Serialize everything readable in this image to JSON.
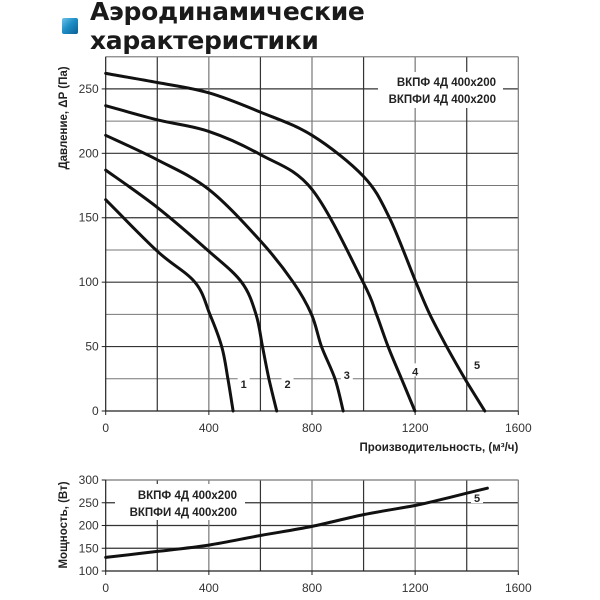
{
  "header": {
    "title": "Аэродинамические характеристики",
    "icon": "blue-square-bullet-icon",
    "icon_color": "#1e8fc6"
  },
  "chart_data": [
    {
      "id": "pressure",
      "type": "line",
      "title": "Аэродинамические характеристики",
      "xlabel": "Производительность, (м³/ч)",
      "ylabel": "Давление, ΔP (Па)",
      "xlim": [
        0,
        1600
      ],
      "ylim": [
        0,
        275
      ],
      "xticks": [
        0,
        400,
        800,
        1200,
        1600
      ],
      "yticks": [
        0,
        50,
        100,
        150,
        200,
        250
      ],
      "grid": true,
      "grid_x_step": 200,
      "grid_y_step": 25,
      "legend": [
        "ВКПФ 4Д 400x200",
        "ВКПФИ 4Д 400x200"
      ],
      "legend_position": "upper right",
      "series": [
        {
          "name": "1",
          "x": [
            0,
            200,
            346,
            404,
            450,
            474,
            494
          ],
          "y": [
            164,
            124,
            100,
            75,
            50,
            25,
            0
          ]
        },
        {
          "name": "2",
          "x": [
            0,
            200,
            400,
            527,
            583,
            608,
            633,
            663
          ],
          "y": [
            187,
            158,
            124,
            100,
            75,
            50,
            25,
            0
          ]
        },
        {
          "name": "3",
          "x": [
            0,
            200,
            400,
            600,
            727,
            798,
            837,
            889,
            921
          ],
          "y": [
            214,
            195,
            172,
            132,
            100,
            75,
            50,
            25,
            0
          ]
        },
        {
          "name": "4",
          "x": [
            0,
            200,
            400,
            600,
            800,
            998,
            1050,
            1095,
            1147,
            1199
          ],
          "y": [
            237,
            226,
            217,
            199,
            172,
            100,
            75,
            50,
            25,
            0
          ]
        },
        {
          "name": "5",
          "x": [
            0,
            200,
            400,
            600,
            800,
            1000,
            1100,
            1203,
            1257,
            1322,
            1393,
            1470
          ],
          "y": [
            262,
            255,
            247,
            232,
            214,
            182,
            150,
            100,
            75,
            50,
            25,
            0
          ]
        }
      ],
      "curve_labels": [
        {
          "text": "1",
          "x": 535,
          "y": 20
        },
        {
          "text": "2",
          "x": 705,
          "y": 20
        },
        {
          "text": "3",
          "x": 935,
          "y": 27
        },
        {
          "text": "4",
          "x": 1200,
          "y": 30
        },
        {
          "text": "5",
          "x": 1440,
          "y": 35
        }
      ]
    },
    {
      "id": "power",
      "type": "line",
      "xlabel": "",
      "ylabel": "Мощность, (Вт)",
      "xlim": [
        0,
        1600
      ],
      "ylim": [
        100,
        300
      ],
      "xticks": [
        0,
        400,
        800,
        1200,
        1600
      ],
      "yticks": [
        100,
        150,
        200,
        250,
        300
      ],
      "grid": true,
      "grid_x_step": 200,
      "grid_y_step": 50,
      "legend": [
        "ВКПФ 4Д 400x200",
        "ВКПФИ 4Д 400x200"
      ],
      "legend_position": "upper left",
      "series": [
        {
          "name": "5",
          "x": [
            0,
            200,
            400,
            600,
            800,
            1000,
            1200,
            1300,
            1400,
            1480
          ],
          "y": [
            130,
            143,
            157,
            178,
            198,
            224,
            244,
            257,
            271,
            282
          ]
        }
      ],
      "curve_labels": [
        {
          "text": "5",
          "x": 1440,
          "y": 258
        }
      ]
    }
  ]
}
